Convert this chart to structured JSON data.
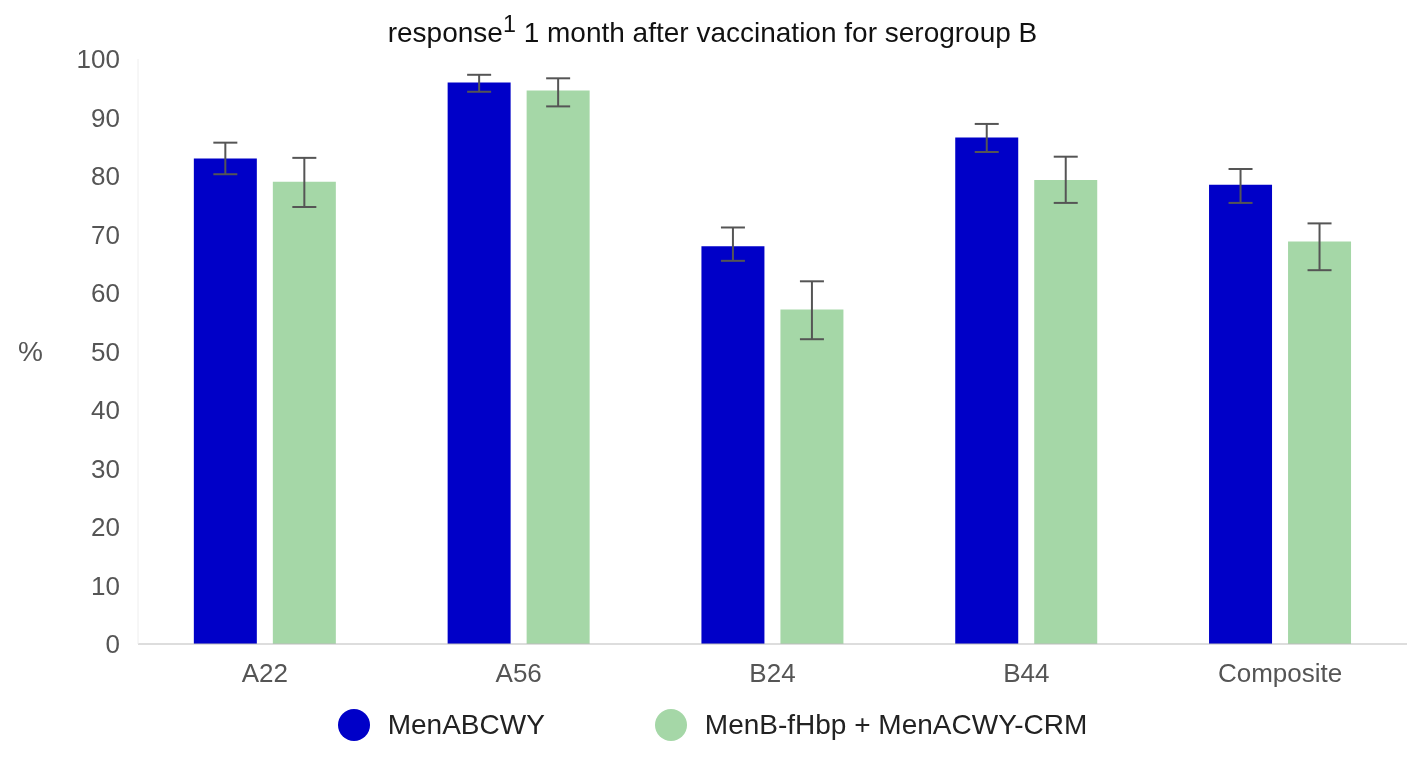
{
  "chart_data": {
    "type": "bar",
    "title": "response$^{1}$ 1 month after vaccination for serogroup B",
    "ylabel": "%",
    "categories": [
      "A22",
      "A56",
      "B24",
      "B44",
      "Composite"
    ],
    "series": [
      {
        "name": "MenABCWY",
        "color": "#0000c8",
        "values": [
          83.0,
          96.0,
          68.0,
          86.6,
          78.5
        ],
        "errors": [
          [
            80.3,
            85.7
          ],
          [
            94.4,
            97.3
          ],
          [
            65.5,
            71.2
          ],
          [
            84.1,
            88.9
          ],
          [
            75.4,
            81.2
          ]
        ]
      },
      {
        "name": "MenB-fHbp + MenACWY-CRM",
        "color": "#a5d7a7",
        "values": [
          79.0,
          94.6,
          57.2,
          79.3,
          68.8
        ],
        "errors": [
          [
            74.7,
            83.1
          ],
          [
            91.9,
            96.7
          ],
          [
            52.1,
            62.0
          ],
          [
            75.4,
            83.3
          ],
          [
            63.9,
            71.9
          ]
        ]
      }
    ],
    "ylim": [
      0,
      100
    ],
    "yticks": [
      0,
      10,
      20,
      30,
      40,
      50,
      60,
      70,
      80,
      90,
      100
    ],
    "grid": false,
    "legend": "bottom"
  }
}
